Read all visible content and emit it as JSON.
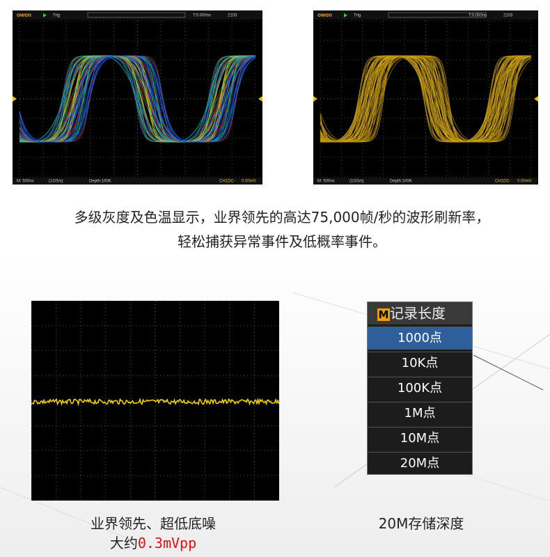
{
  "top_caption": {
    "line1": "多级灰度及色温显示，业界领先的高达75,000帧/秒的波形刷新率，",
    "line2": "轻松捕获异常事件及低概率事件。"
  },
  "scopes": [
    {
      "brand": "owon",
      "trig": "Trig",
      "time_offset": "T:0.000ns",
      "counter": "2103",
      "timebase": "M: 500ns",
      "sample_rate": "(1GS/s)",
      "depth": "Depth:100K",
      "channel": "CH1DC-",
      "trigger_level": "0.00mV"
    },
    {
      "brand": "owon",
      "trig": "Trig",
      "time_offset": "T:0.000ns",
      "counter": "2103",
      "timebase": "M: 500ns",
      "sample_rate": "(1GS/s)",
      "depth": "Depth:100K",
      "channel": "CH1DC-",
      "trigger_level": "0.00mV"
    }
  ],
  "noise_caption": {
    "line1": "业界领先、超低底噪",
    "prefix": "大约",
    "value": "0.3mVpp"
  },
  "menu": {
    "icon": "M",
    "title": "记录长度",
    "items": [
      "1000点",
      "10K点",
      "100K点",
      "1M点",
      "10M点",
      "20M点"
    ]
  },
  "depth_caption": "20M存储深度"
}
